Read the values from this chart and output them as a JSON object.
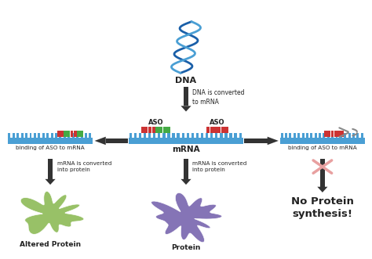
{
  "bg_color": "#ffffff",
  "dna_label": "DNA",
  "dna_converted_text": "DNA is converted\nto mRNA",
  "mrna_label": "mRNA",
  "aso_label": "ASO",
  "binding_left_label": "binding of ASO to mRNA",
  "binding_right_label": "binding of ASO to mRNA",
  "mrna_converted_left": "mRNA is converted\ninto protein",
  "mrna_converted_center": "mRNA is converted\ninto protein",
  "altered_protein_label": "Altered Protein",
  "protein_label": "Protein",
  "no_protein_label": "No Protein\nsynthesis!",
  "mrna_color": "#4a9fd4",
  "aso_red_color": "#cc3333",
  "aso_green_color": "#44aa44",
  "arrow_color": "#333333",
  "dna_blue_dark": "#1a5fa8",
  "dna_blue_light": "#4a9fd4",
  "protein_green": "#8fbc5a",
  "protein_purple": "#7b68b0",
  "scissors_color": "#888888",
  "cross_color": "#e8a0a0",
  "text_color": "#222222",
  "text_color2": "#444444"
}
